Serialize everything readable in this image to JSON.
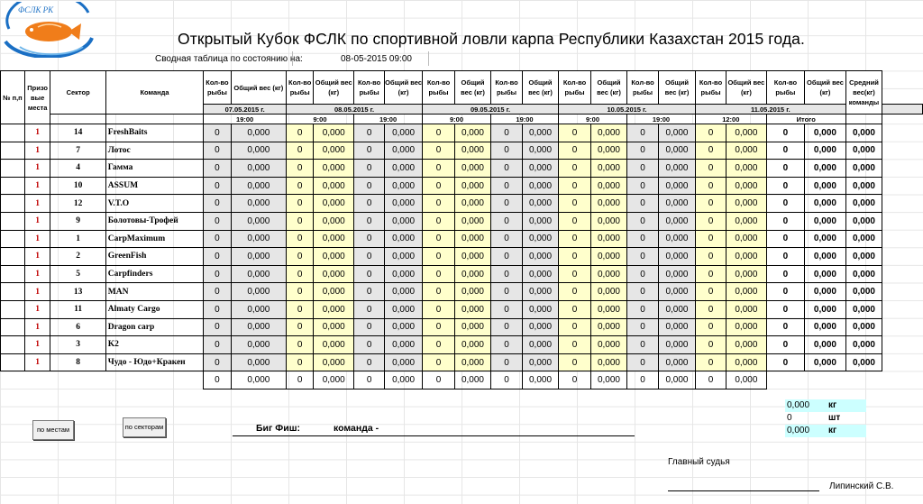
{
  "logo": {
    "text": "ФСЛК РК",
    "colors": {
      "blue": "#1a6fc4",
      "orange": "#f07d1a"
    }
  },
  "title": "Открытый Кубок ФСЛК по спортивной ловли карпа Республики Казахстан 2015 года.",
  "status": {
    "label": "Сводная таблица по состоянию на:",
    "value": "08-05-2015 09:00"
  },
  "headers": {
    "num": "№ п,п",
    "place": "Призо вые места",
    "sector": "Сектор",
    "team": "Команда",
    "count": "Кол-во рыбы",
    "weight": "Общий вес (кг)",
    "avg": "Средний вес(кг) команды"
  },
  "dates": [
    "07.05.2015 г.",
    "08.05.2015 г.",
    "09.05.2015 г.",
    "10.05.2015 г.",
    "11.05.2015 г."
  ],
  "times": [
    "19:00",
    "9:00",
    "19:00",
    "9:00",
    "19:00",
    "9:00",
    "19:00",
    "12:00",
    "Итого"
  ],
  "teams": [
    {
      "place": "1",
      "sector": "14",
      "name": "FreshBaits"
    },
    {
      "place": "1",
      "sector": "7",
      "name": "Лотос"
    },
    {
      "place": "1",
      "sector": "4",
      "name": "Гамма"
    },
    {
      "place": "1",
      "sector": "10",
      "name": "ASSUM"
    },
    {
      "place": "1",
      "sector": "12",
      "name": "V.T.O"
    },
    {
      "place": "1",
      "sector": "9",
      "name": "Болотовы-Трофей"
    },
    {
      "place": "1",
      "sector": "1",
      "name": "CarpMaximum"
    },
    {
      "place": "1",
      "sector": "2",
      "name": "GreenFish"
    },
    {
      "place": "1",
      "sector": "5",
      "name": "Carpfinders"
    },
    {
      "place": "1",
      "sector": "13",
      "name": "MAN"
    },
    {
      "place": "1",
      "sector": "11",
      "name": "Almaty Cargo"
    },
    {
      "place": "1",
      "sector": "6",
      "name": "Dragon carp"
    },
    {
      "place": "1",
      "sector": "3",
      "name": "K2"
    },
    {
      "place": "1",
      "sector": "8",
      "name": "Чудо - Юдо+Кракен"
    }
  ],
  "cell_count": "0",
  "cell_weight": "0,000",
  "buttons": {
    "by_places": "по местам",
    "by_sectors": "по секторам"
  },
  "bigfish": {
    "label": "Биг Фиш:",
    "team_label": "команда -"
  },
  "summary": {
    "weight": "0,000",
    "count": "0",
    "bigfish": "0,000",
    "unit_kg": "кг",
    "unit_sht": "шт"
  },
  "judge": {
    "label": "Главный судья",
    "name": "Липинский С.В."
  }
}
